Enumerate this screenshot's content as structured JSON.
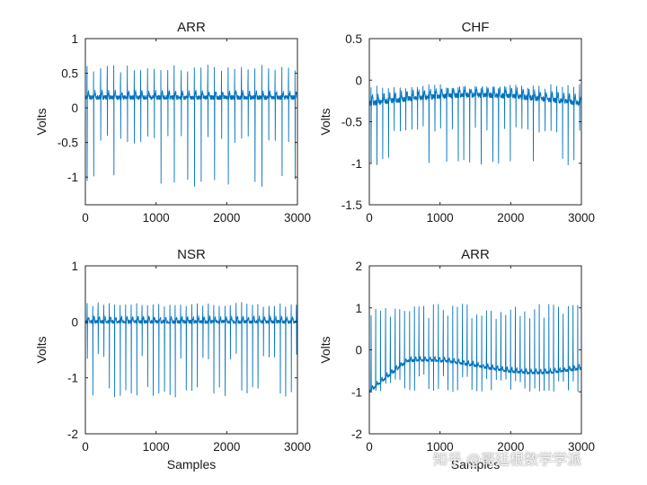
{
  "chart_data": [
    {
      "type": "line",
      "title": "ARR",
      "xlabel": "",
      "ylabel": "Volts",
      "xlim": [
        0,
        3000
      ],
      "ylim": [
        -1.4,
        1
      ],
      "xticks": [
        0,
        1000,
        2000,
        3000
      ],
      "xtick_labels": [
        "0",
        "1000",
        "2000",
        "3000"
      ],
      "yticks": [
        1,
        0.5,
        0,
        -0.5,
        -1
      ],
      "ytick_labels": [
        "1",
        "0.5",
        "0",
        "-0.5",
        "-1"
      ],
      "series": [
        {
          "name": "ARR",
          "n_samples": 3000,
          "beat_interval": 95,
          "baseline": 0.15,
          "peak_max": 0.62,
          "peak_min": -1.15
        }
      ]
    },
    {
      "type": "line",
      "title": "CHF",
      "xlabel": "",
      "ylabel": "Volts",
      "xlim": [
        0,
        3000
      ],
      "ylim": [
        -1.5,
        0.5
      ],
      "xticks": [
        0,
        1000,
        2000,
        3000
      ],
      "xtick_labels": [
        "0",
        "1000",
        "2000",
        "3000"
      ],
      "yticks": [
        0.5,
        0,
        -0.5,
        -1,
        -1.5
      ],
      "ytick_labels": [
        "0.5",
        "0",
        "-0.5",
        "-1",
        "-1.5"
      ],
      "series": [
        {
          "name": "CHF",
          "n_samples": 3000,
          "beat_interval": 82,
          "baseline": -0.28,
          "peak_max": -0.05,
          "peak_min": -1.02
        }
      ]
    },
    {
      "type": "line",
      "title": "NSR",
      "xlabel": "Samples",
      "ylabel": "Volts",
      "xlim": [
        0,
        3000
      ],
      "ylim": [
        -2,
        1
      ],
      "xticks": [
        0,
        1000,
        2000,
        3000
      ],
      "xtick_labels": [
        "0",
        "1000",
        "2000",
        "3000"
      ],
      "yticks": [
        1,
        0,
        -1,
        -2
      ],
      "ytick_labels": [
        "1",
        "0",
        "-1",
        "-2"
      ],
      "series": [
        {
          "name": "NSR",
          "n_samples": 3000,
          "beat_interval": 78,
          "baseline": 0.0,
          "peak_max": 0.35,
          "peak_min": -1.35
        }
      ]
    },
    {
      "type": "line",
      "title": "ARR",
      "xlabel": "Samples",
      "ylabel": "Volts",
      "xlim": [
        0,
        3000
      ],
      "ylim": [
        -2,
        2
      ],
      "xticks": [
        0,
        1000,
        2000,
        3000
      ],
      "xtick_labels": [
        "0",
        "1000",
        "2000",
        "3000"
      ],
      "yticks": [
        2,
        1,
        0,
        -1,
        -2
      ],
      "ytick_labels": [
        "2",
        "1",
        "0",
        "-1",
        "-2"
      ],
      "series": [
        {
          "name": "ARR",
          "n_samples": 3000,
          "beat_interval": 68,
          "baseline": -0.4,
          "peak_max": 1.1,
          "peak_min": -1.0
        }
      ]
    }
  ],
  "watermark": "知乎 @哥廷根数学学派",
  "colors": {
    "trace": "#0072bd",
    "axis": "#262626",
    "text": "#1a1a1a",
    "background": "#ffffff"
  }
}
